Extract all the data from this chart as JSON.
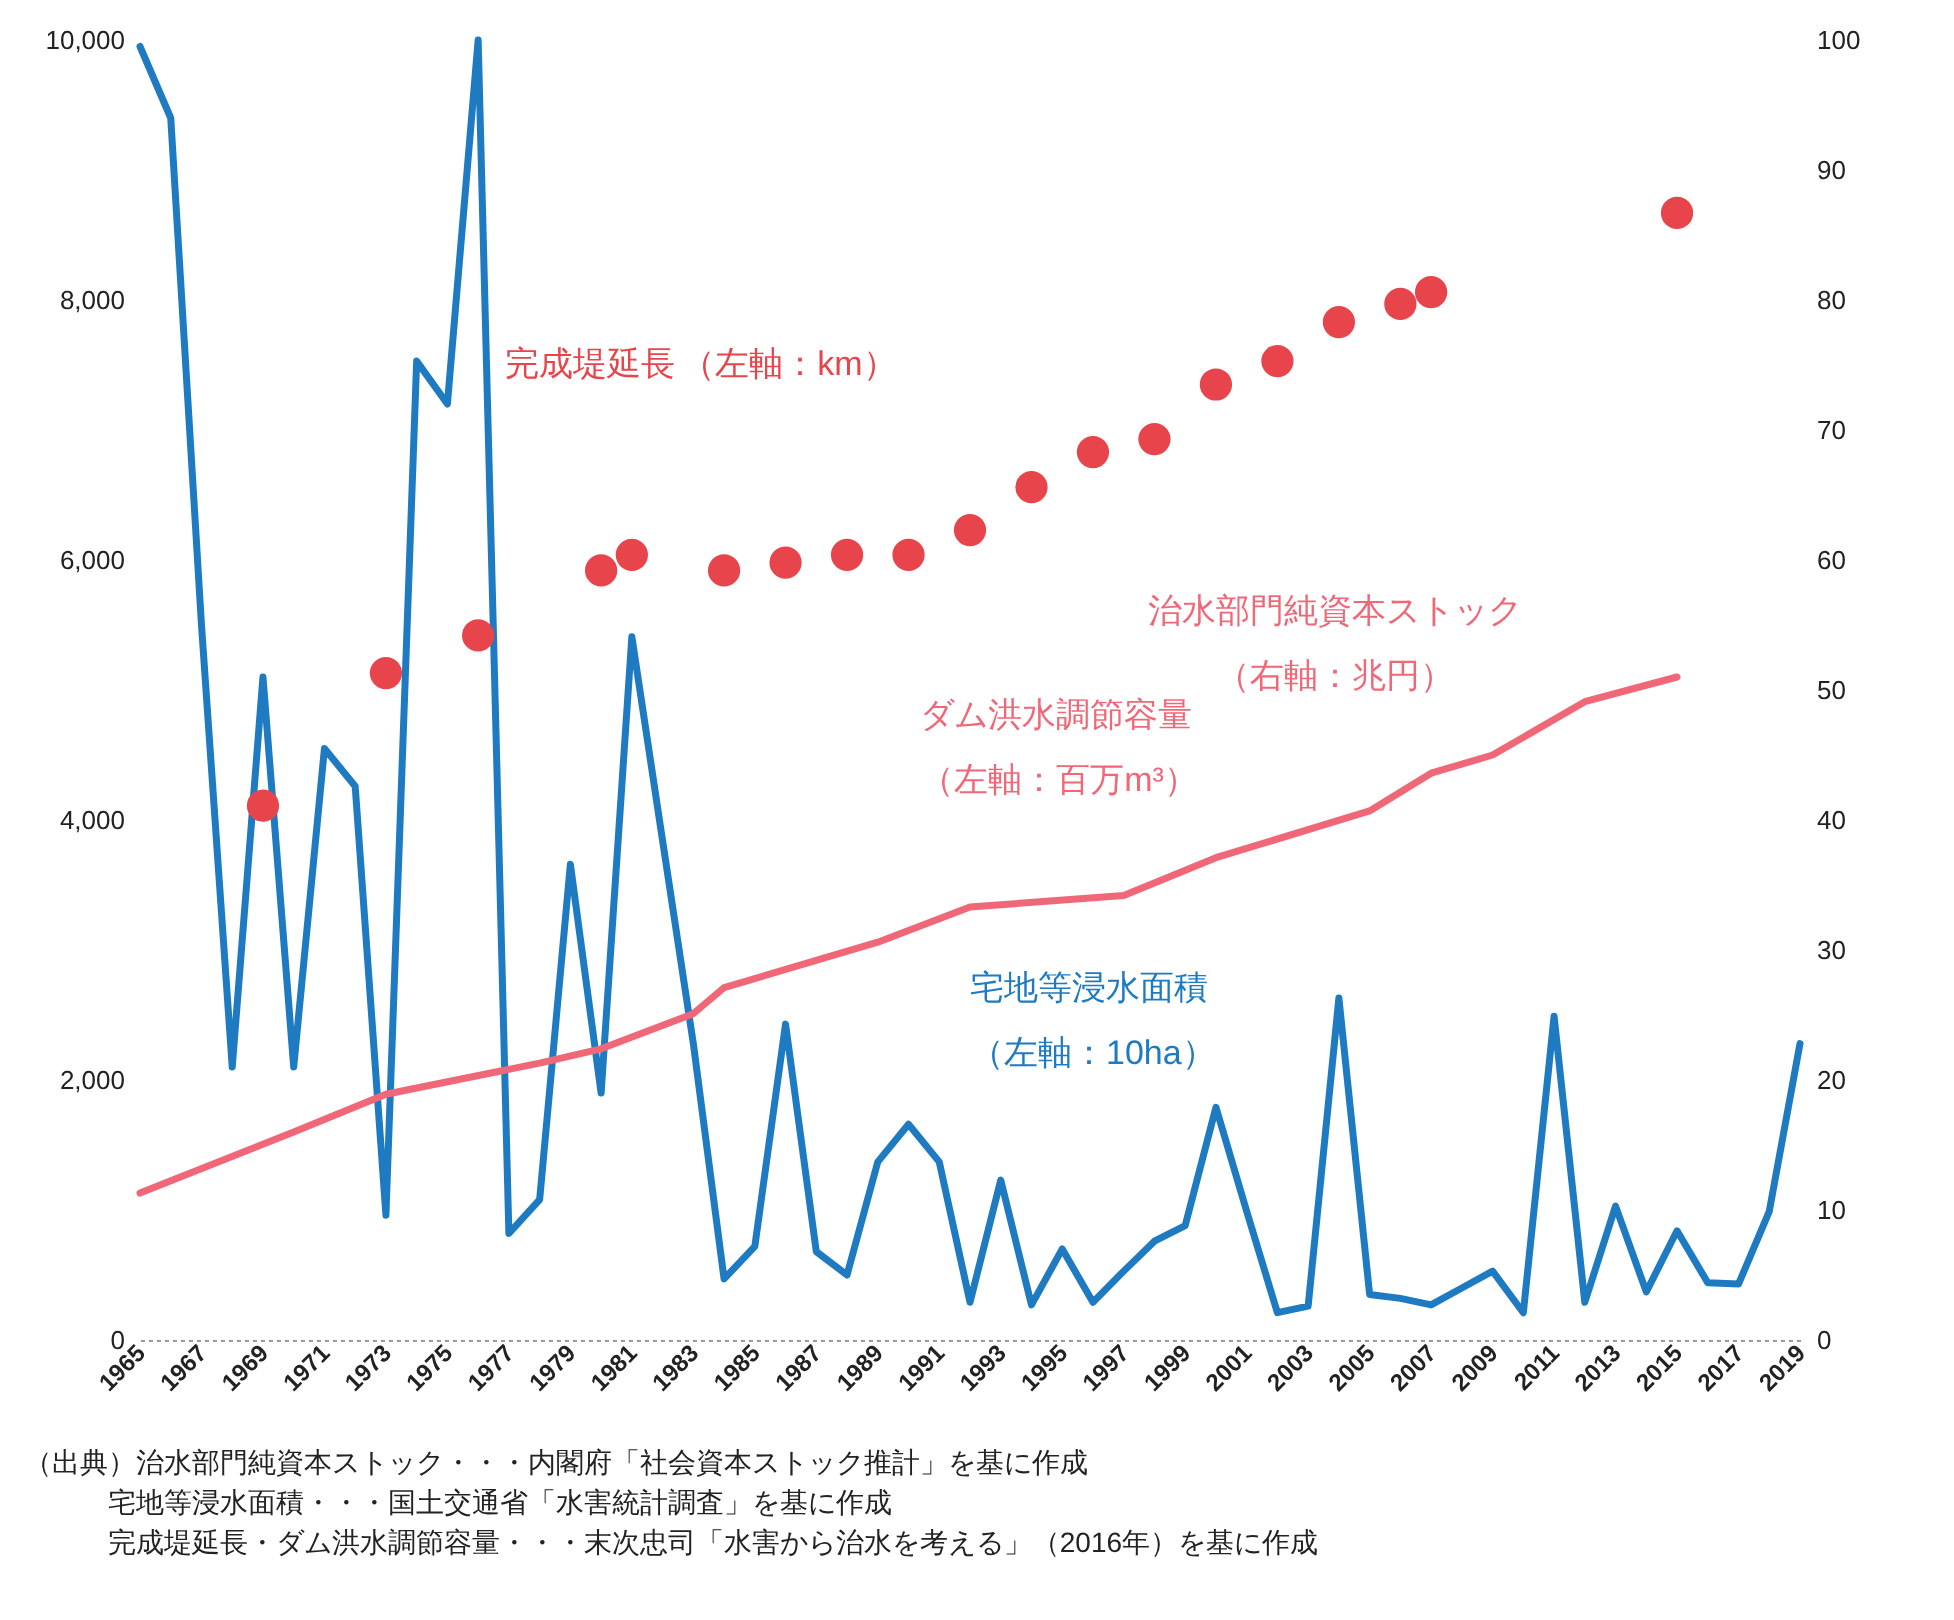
{
  "chart_data": {
    "type": "line",
    "xlim": [
      1965,
      2019
    ],
    "xticks": [
      1965,
      1967,
      1969,
      1971,
      1973,
      1975,
      1977,
      1979,
      1981,
      1983,
      1985,
      1987,
      1989,
      1991,
      1993,
      1995,
      1997,
      1999,
      2001,
      2003,
      2005,
      2007,
      2009,
      2011,
      2013,
      2015,
      2017,
      2019
    ],
    "ylim": [
      0,
      10000
    ],
    "yticks": [
      0,
      {
        "value": 2000,
        "label": "2,000"
      },
      {
        "value": 4000,
        "label": "4,000"
      },
      {
        "value": 6000,
        "label": "6,000"
      },
      {
        "value": 8000,
        "label": "8,000"
      },
      {
        "value": 10000,
        "label": "10,000"
      }
    ],
    "legend": false,
    "y2lim": [
      0,
      100
    ],
    "y2ticks": [
      0,
      10,
      20,
      30,
      40,
      50,
      60,
      70,
      80,
      90,
      100
    ],
    "series": [
      {
        "name": "宅地等浸水面積",
        "color": "#1f7bc1",
        "x": [
          1965,
          1966,
          1967,
          1968,
          1969,
          1970,
          1971,
          1972,
          1973,
          1974,
          1975,
          1976,
          1977,
          1978,
          1979,
          1980,
          1981,
          1982,
          1983,
          1984,
          1985,
          1986,
          1987,
          1988,
          1989,
          1990,
          1991,
          1992,
          1993,
          1994,
          1995,
          1996,
          1997,
          1998,
          1999,
          2000,
          2001,
          2002,
          2003,
          2004,
          2005,
          2006,
          2007,
          2008,
          2009,
          2010,
          2011,
          2012,
          2013,
          2014,
          2015,
          2016,
          2017,
          2018,
          2019
        ],
        "values": [
          9950,
          9400,
          5500,
          2100,
          5100,
          2100,
          4550,
          4260,
          960,
          7530,
          7200,
          10000,
          820,
          1080,
          3660,
          1900,
          5410,
          3840,
          2280,
          470,
          720,
          2430,
          680,
          500,
          1370,
          1660,
          1370,
          290,
          1230,
          270,
          700,
          290,
          530,
          760,
          880,
          1790,
          990,
          210,
          260,
          2630,
          350,
          320,
          270,
          400,
          530,
          210,
          2490,
          290,
          1030,
          370,
          840,
          440,
          430,
          990,
          2280
        ]
      },
      {
        "name": "ダム洪水調節容量",
        "color": "#f06878",
        "x": [
          1965,
          1970,
          1973,
          1978,
          1980,
          1983,
          1984,
          1989,
          1992,
          1997,
          2000,
          2005,
          2007,
          2009,
          2012,
          2015
        ],
        "values": [
          1130,
          1600,
          1890,
          2130,
          2240,
          2510,
          2710,
          3060,
          3330,
          3420,
          3710,
          4070,
          4360,
          4500,
          4910,
          5100
        ]
      },
      {
        "name": "完成堤延長",
        "type": "scatter",
        "color": "#e8444c",
        "x": [
          1969,
          1973,
          1976,
          1980,
          1981,
          1984,
          1986,
          1988,
          1990,
          1992,
          1994,
          1996,
          1998,
          2000,
          2002,
          2004,
          2006,
          2007,
          2015
        ],
        "values": [
          4110,
          5130,
          5420,
          5920,
          6040,
          5920,
          5980,
          6040,
          6040,
          6230,
          6560,
          6830,
          6930,
          7350,
          7530,
          7830,
          7970,
          8060,
          8670
        ]
      }
    ],
    "annotations": [
      "（左軸：10ha）",
      "（左軸：百万m³）",
      "（左軸：km）",
      "治水部門純資本ストック",
      "（右軸：兆円）",
      "（出典）治水部門純資本ストック・・・内閣府「社会資本ストック推計」を基に作成",
      "宅地等浸水面積・・・国土交通省「水害統計調査」を基に作成",
      "完成堤延長・ダム洪水調節容量・・・末次忠司「水害から治水を考える」（2016年）を基に作成"
    ]
  }
}
